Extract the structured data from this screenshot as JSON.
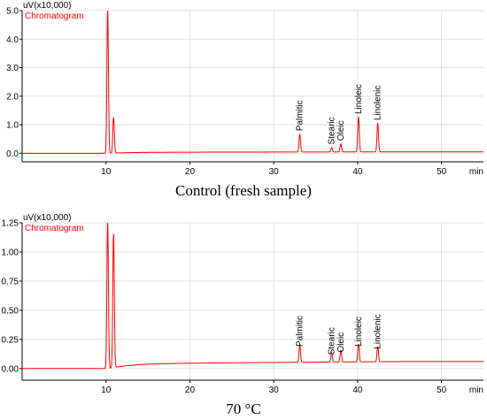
{
  "chart_data": [
    {
      "type": "line",
      "caption": "Control (fresh sample)",
      "ylabel": "uV(x10,000)",
      "xlabel": "min",
      "series": [
        {
          "name": "Chromatogram",
          "color": "#ff0000"
        }
      ],
      "xlim": [
        0,
        55
      ],
      "ylim": [
        -0.3,
        5.0
      ],
      "x_ticks": [
        10,
        20,
        30,
        40,
        50
      ],
      "x_tick_labels": [
        "10",
        "20",
        "30",
        "40",
        "50"
      ],
      "y_ticks": [
        0.0,
        1.0,
        2.0,
        3.0,
        4.0,
        5.0
      ],
      "y_tick_labels": [
        "0.0",
        "1.0",
        "2.0",
        "3.0",
        "4.0",
        "5.0"
      ],
      "grid": true,
      "baseline": 0.0,
      "drift": 0.05,
      "peaks": [
        {
          "x": 10.2,
          "y": 5.0
        },
        {
          "x": 10.9,
          "y": 1.25
        },
        {
          "x": 33.1,
          "y": 0.62,
          "label": "Palmitic"
        },
        {
          "x": 36.9,
          "y": 0.15,
          "label": "Stearic"
        },
        {
          "x": 38.0,
          "y": 0.28,
          "label": "Oleic"
        },
        {
          "x": 40.1,
          "y": 1.22,
          "label": "Linoleic"
        },
        {
          "x": 42.4,
          "y": 1.0,
          "label": "Linolenic"
        }
      ]
    },
    {
      "type": "line",
      "caption": "70 °C",
      "ylabel": "uV(x10,000)",
      "xlabel": "min",
      "series": [
        {
          "name": "Chromatogram",
          "color": "#ff0000"
        }
      ],
      "xlim": [
        0,
        55
      ],
      "ylim": [
        -0.1,
        1.25
      ],
      "x_ticks": [
        10,
        20,
        30,
        40,
        50
      ],
      "x_tick_labels": [
        "10",
        "20",
        "30",
        "40",
        "50"
      ],
      "y_ticks": [
        0.0,
        0.25,
        0.5,
        0.75,
        1.0,
        1.25
      ],
      "y_tick_labels": [
        "0.00",
        "0.25",
        "0.50",
        "0.75",
        "1.00",
        "1.25"
      ],
      "grid": true,
      "baseline": 0.0,
      "drift": 0.06,
      "peaks": [
        {
          "x": 10.2,
          "y": 1.25
        },
        {
          "x": 10.9,
          "y": 1.15
        },
        {
          "x": 33.1,
          "y": 0.15,
          "label": "Palmitic"
        },
        {
          "x": 36.9,
          "y": 0.08,
          "label": "Stearic"
        },
        {
          "x": 38.0,
          "y": 0.1,
          "label": "Oleic"
        },
        {
          "x": 40.1,
          "y": 0.15,
          "label": "Linoleic"
        },
        {
          "x": 42.4,
          "y": 0.13,
          "label": "Linolenic"
        }
      ]
    }
  ]
}
